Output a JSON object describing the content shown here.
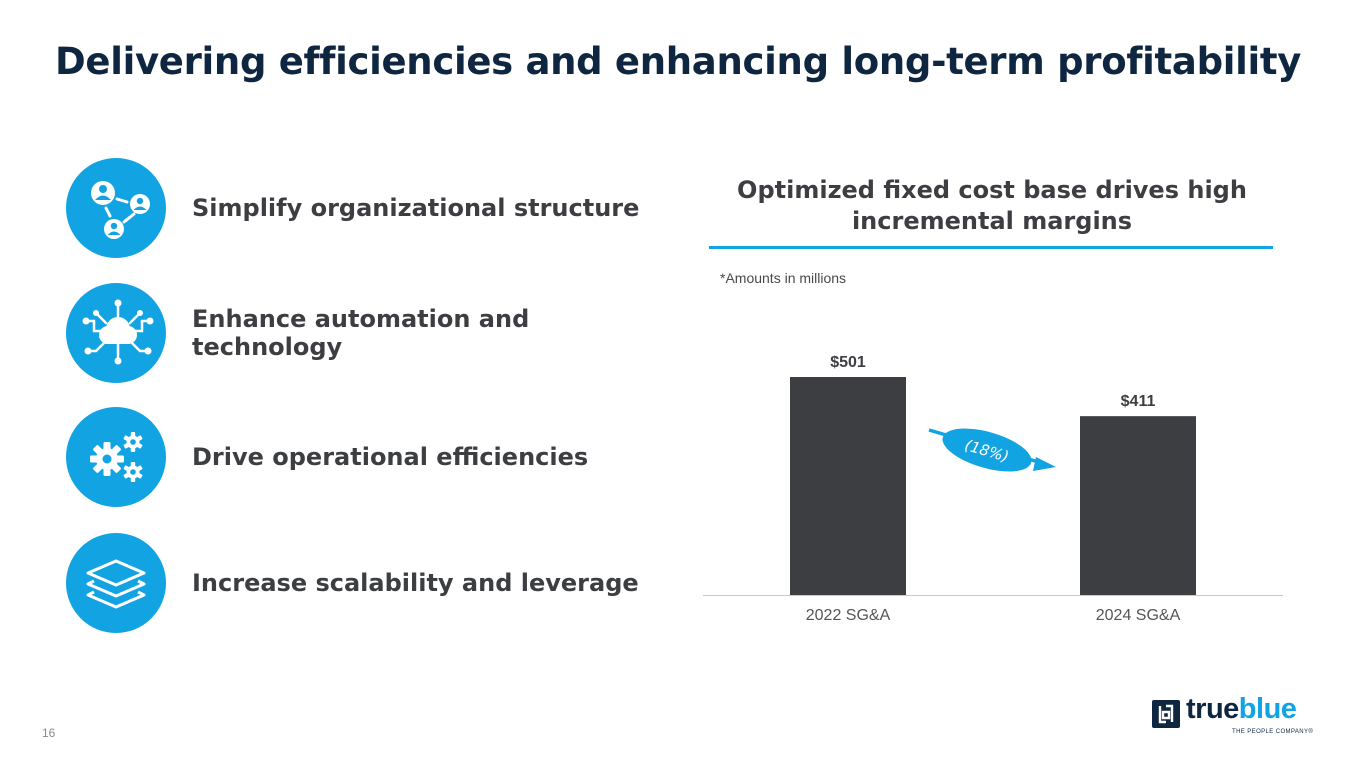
{
  "title": "Delivering efficiencies and enhancing long-term profitability",
  "pillars": [
    {
      "label": "Simplify organizational structure",
      "icon": "org-structure-icon"
    },
    {
      "label": "Enhance automation and technology",
      "icon": "cloud-network-icon"
    },
    {
      "label": "Drive operational efficiencies",
      "icon": "gears-icon"
    },
    {
      "label": "Increase scalability and leverage",
      "icon": "layers-icon"
    }
  ],
  "chart_heading": "Optimized fixed cost base drives high incremental margins",
  "footnote": "*Amounts in millions",
  "chart_data": {
    "type": "bar",
    "title": "Optimized fixed cost base drives high incremental margins",
    "categories": [
      "2022 SG&A",
      "2024 SG&A"
    ],
    "values": [
      501,
      411
    ],
    "value_labels": [
      "$501",
      "$411"
    ],
    "change_label": "(18%)",
    "ylim": [
      0,
      501
    ],
    "grid": false,
    "bar_color": "#3c3e42",
    "accent_color": "#12a3e3"
  },
  "page_number": "16",
  "logo": {
    "word1": "true",
    "word2": "blue",
    "tagline": "THE PEOPLE COMPANY®"
  },
  "colors": {
    "accent": "#12a3e3",
    "navy": "#0f2640",
    "text": "#3c3e42"
  }
}
